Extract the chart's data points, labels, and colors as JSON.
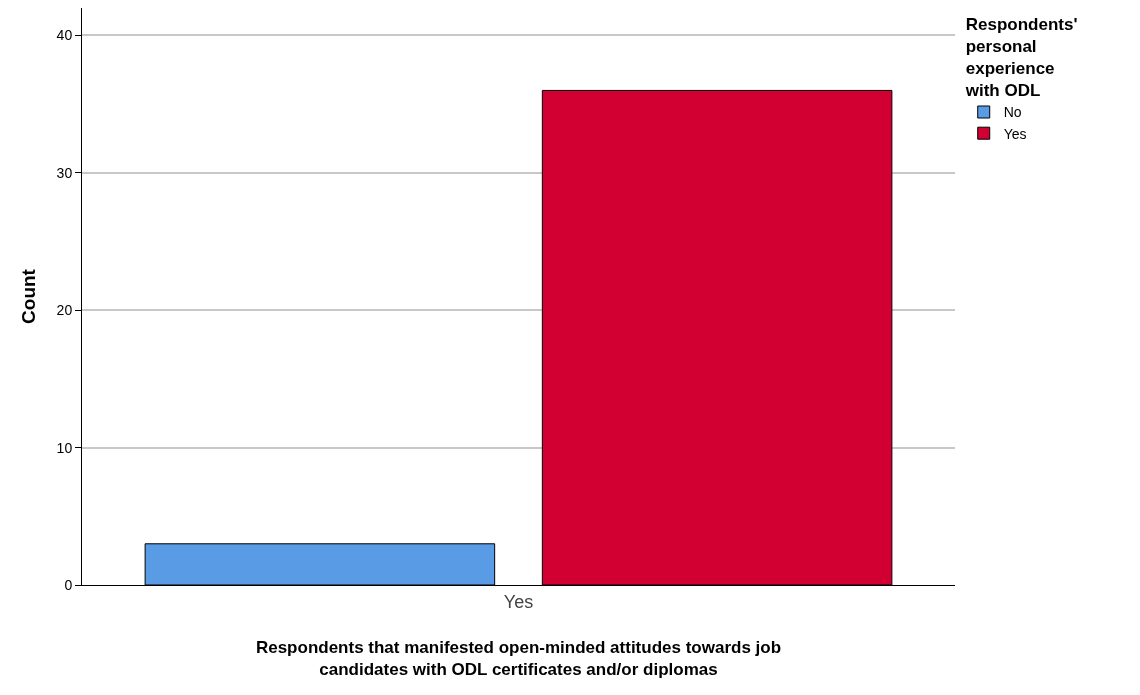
{
  "chart_data": {
    "type": "bar",
    "xlabel": "Respondents that manifested open-minded attitudes towards job candidates with ODL certificates and/or diplomas",
    "ylabel": "Count",
    "legend_title": "Respondents' personal experience with ODL",
    "categories": [
      "Yes"
    ],
    "series": [
      {
        "name": "No",
        "color": "#5a9be6",
        "values": [
          3
        ]
      },
      {
        "name": "Yes",
        "color": "#d20032",
        "values": [
          36
        ]
      }
    ],
    "ylim": [
      0,
      42
    ],
    "yticks": [
      0,
      10,
      20,
      30,
      40
    ],
    "grid": "y",
    "legend": "top right"
  }
}
